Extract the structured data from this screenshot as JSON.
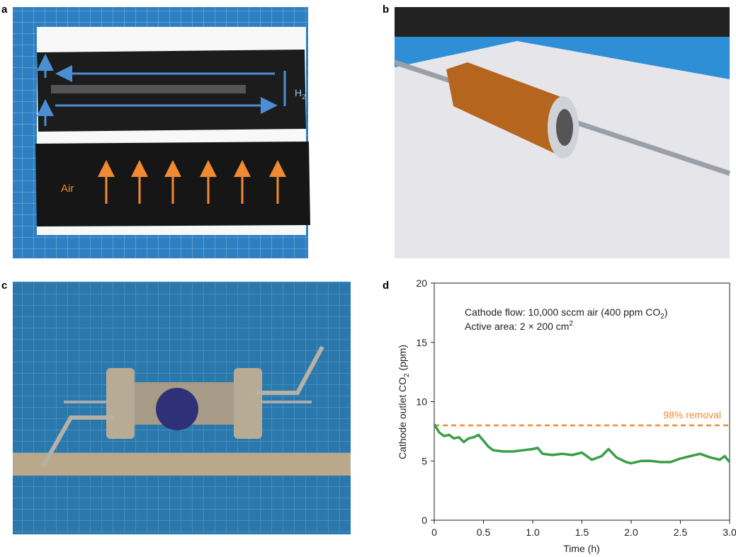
{
  "panels": {
    "a": {
      "label": "a",
      "air": "Air",
      "h2": [
        "H",
        "2"
      ]
    },
    "b": {
      "label": "b"
    },
    "c": {
      "label": "c"
    },
    "d": {
      "label": "d"
    }
  },
  "chart_data": {
    "type": "line",
    "annotation": {
      "line1": [
        "Cathode flow: 10,000 sccm air (400 ppm CO",
        "2",
        ")"
      ],
      "line2": [
        "Active area: 2  × 200 cm",
        "2"
      ]
    },
    "xlabel": "Time (h)",
    "ylabel": [
      "Cathode outlet CO",
      "2",
      " (ppm)"
    ],
    "x": [
      0,
      0.05,
      0.1,
      0.15,
      0.2,
      0.25,
      0.3,
      0.35,
      0.4,
      0.45,
      0.5,
      0.55,
      0.6,
      0.7,
      0.8,
      0.9,
      1.0,
      1.05,
      1.1,
      1.2,
      1.3,
      1.4,
      1.5,
      1.6,
      1.7,
      1.77,
      1.85,
      1.95,
      2.0,
      2.1,
      2.2,
      2.3,
      2.4,
      2.5,
      2.6,
      2.7,
      2.8,
      2.9,
      2.95,
      3.0
    ],
    "series": [
      {
        "color": "#3a9e48",
        "values": [
          8.1,
          7.4,
          7.1,
          7.2,
          6.9,
          7.0,
          6.6,
          6.9,
          7.0,
          7.2,
          6.7,
          6.2,
          5.9,
          5.8,
          5.8,
          5.9,
          6.0,
          6.1,
          5.6,
          5.5,
          5.6,
          5.5,
          5.7,
          5.1,
          5.4,
          6.0,
          5.3,
          4.9,
          4.8,
          5.0,
          5.0,
          4.9,
          4.9,
          5.2,
          5.4,
          5.6,
          5.3,
          5.1,
          5.4,
          4.9
        ]
      }
    ],
    "reference_line": {
      "value": 8,
      "label": "98% removal",
      "color": "#f08a33"
    },
    "xlim": [
      0,
      3
    ],
    "ylim": [
      0,
      20
    ],
    "xticks": [
      0,
      0.5,
      {
        "value": 1,
        "label": "1.0"
      },
      1.5,
      {
        "value": 2,
        "label": "2.0"
      },
      2.5,
      {
        "value": 3,
        "label": "3.0"
      }
    ],
    "yticks": [
      0,
      5,
      10,
      15,
      20
    ]
  }
}
